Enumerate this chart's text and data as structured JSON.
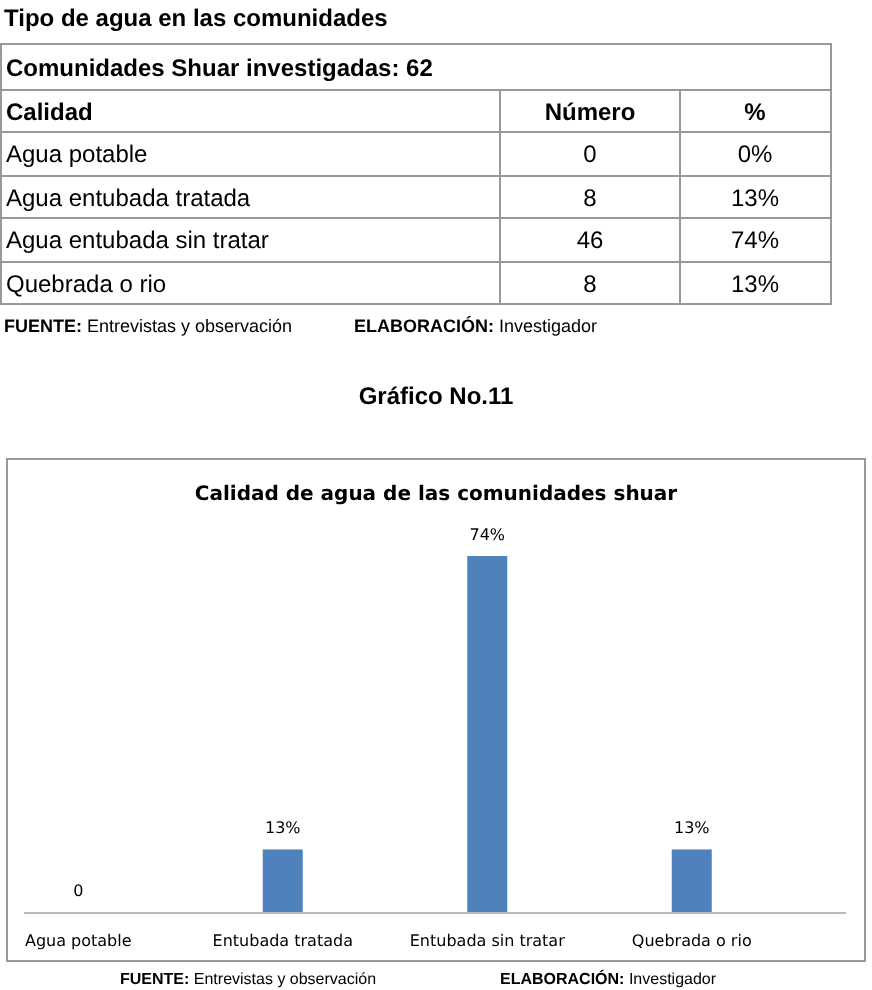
{
  "chart_data": {
    "type": "bar",
    "title": "Calidad de agua de las comunidades shuar",
    "categories": [
      "Agua potable",
      "Entubada tratada",
      "Entubada sin tratar",
      "Quebrada o rio"
    ],
    "values": [
      0,
      13,
      74,
      13
    ],
    "value_labels": [
      "0",
      "13%",
      "74%",
      "13%"
    ],
    "color": "#4f81bd",
    "annotations": [
      "Tipo de agua en las comunidades",
      "Comunidades Shuar  investigadas: 62",
      "Calidad",
      "Número",
      "%",
      "Agua potable",
      "0",
      "0%",
      "Agua entubada tratada",
      "8",
      "13%",
      "Agua entubada sin tratar",
      "46",
      "74%",
      "Quebrada o rio",
      "8",
      "13%",
      "FUENTE: Entrevistas y observación",
      "ELABORACIÓN:  Investigador",
      "Gráfico No.11",
      "FUENTE: Entrevistas y observación",
      "ELABORACIÓN:  Investigador"
    ]
  }
}
